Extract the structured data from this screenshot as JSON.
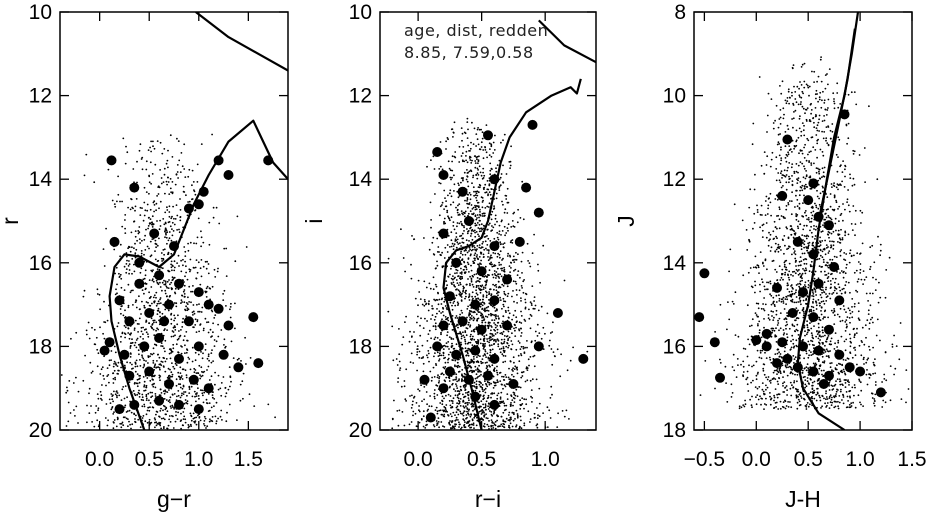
{
  "colors": {
    "ink": "#000000",
    "background": "#ffffff"
  },
  "chart_data": [
    {
      "type": "scatter",
      "title": "",
      "xlabel": "g−r",
      "ylabel": "r",
      "xlim": [
        -0.4,
        1.9
      ],
      "ylim": [
        20,
        10
      ],
      "xticks": [
        0.0,
        0.5,
        1.0,
        1.5
      ],
      "xtick_labels": [
        "0.0",
        "0.5",
        "1.0",
        "1.5"
      ],
      "yticks": [
        10,
        12,
        14,
        16,
        18,
        20
      ],
      "ytick_labels": [
        "10",
        "12",
        "14",
        "16",
        "18",
        "20"
      ],
      "grid": false,
      "annotations": [],
      "field_star_cloud": {
        "x_center": 0.6,
        "x_spread": 0.32,
        "y_top": 12.8,
        "y_bottom": 20.0,
        "count": 1600
      },
      "isochrone": [
        [
          0.45,
          20.0
        ],
        [
          0.3,
          19.0
        ],
        [
          0.2,
          18.2
        ],
        [
          0.12,
          17.4
        ],
        [
          0.1,
          16.8
        ],
        [
          0.15,
          16.1
        ],
        [
          0.25,
          15.8
        ],
        [
          0.4,
          15.85
        ],
        [
          0.6,
          16.1
        ],
        [
          0.75,
          15.8
        ],
        [
          0.85,
          15.2
        ],
        [
          0.95,
          14.6
        ],
        [
          1.1,
          13.9
        ],
        [
          1.3,
          13.1
        ],
        [
          1.55,
          12.6
        ],
        [
          1.65,
          13.1
        ],
        [
          1.75,
          13.6
        ],
        [
          1.9,
          14.0
        ]
      ],
      "isochrone_upper": [
        [
          0.97,
          10.0
        ],
        [
          1.3,
          10.6
        ],
        [
          1.6,
          11.0
        ],
        [
          1.9,
          11.4
        ]
      ],
      "member_points": [
        [
          0.12,
          13.55
        ],
        [
          0.35,
          14.2
        ],
        [
          0.9,
          14.7
        ],
        [
          1.0,
          14.6
        ],
        [
          1.05,
          14.3
        ],
        [
          1.2,
          13.55
        ],
        [
          1.3,
          13.9
        ],
        [
          1.7,
          13.55
        ],
        [
          0.15,
          15.5
        ],
        [
          0.55,
          15.3
        ],
        [
          0.75,
          15.6
        ],
        [
          0.4,
          16.0
        ],
        [
          0.6,
          16.3
        ],
        [
          0.8,
          16.5
        ],
        [
          1.0,
          16.7
        ],
        [
          1.1,
          17.0
        ],
        [
          0.2,
          16.9
        ],
        [
          0.3,
          17.4
        ],
        [
          0.5,
          17.2
        ],
        [
          0.7,
          17.0
        ],
        [
          0.9,
          17.4
        ],
        [
          1.2,
          17.1
        ],
        [
          1.3,
          17.5
        ],
        [
          0.1,
          17.9
        ],
        [
          0.25,
          18.2
        ],
        [
          0.45,
          18.0
        ],
        [
          0.6,
          17.8
        ],
        [
          0.8,
          18.3
        ],
        [
          1.0,
          18.0
        ],
        [
          1.25,
          18.2
        ],
        [
          0.3,
          18.7
        ],
        [
          0.5,
          18.6
        ],
        [
          0.7,
          18.9
        ],
        [
          0.95,
          18.8
        ],
        [
          1.1,
          19.0
        ],
        [
          0.2,
          19.5
        ],
        [
          0.35,
          19.4
        ],
        [
          0.6,
          19.3
        ],
        [
          0.8,
          19.4
        ],
        [
          1.0,
          19.5
        ],
        [
          1.4,
          18.5
        ],
        [
          1.6,
          18.4
        ],
        [
          1.55,
          17.3
        ],
        [
          0.05,
          18.1
        ],
        [
          0.4,
          16.5
        ],
        [
          0.65,
          17.4
        ]
      ]
    },
    {
      "type": "scatter",
      "title": "",
      "xlabel": "r−i",
      "ylabel": "i",
      "xlim": [
        -0.3,
        1.4
      ],
      "ylim": [
        20,
        10
      ],
      "xticks": [
        0.0,
        0.5,
        1.0
      ],
      "xtick_labels": [
        "0.0",
        "0.5",
        "1.0"
      ],
      "yticks": [
        10,
        12,
        14,
        16,
        18,
        20
      ],
      "ytick_labels": [
        "10",
        "12",
        "14",
        "16",
        "18",
        "20"
      ],
      "grid": false,
      "annotations": [
        "age, dist, redden",
        "8.85, 7.59,0.58"
      ],
      "field_star_cloud": {
        "x_center": 0.45,
        "x_spread": 0.22,
        "y_top": 12.5,
        "y_bottom": 20.0,
        "count": 2600
      },
      "isochrone": [
        [
          0.5,
          20.0
        ],
        [
          0.42,
          19.0
        ],
        [
          0.35,
          18.2
        ],
        [
          0.25,
          17.2
        ],
        [
          0.2,
          16.6
        ],
        [
          0.22,
          16.0
        ],
        [
          0.3,
          15.7
        ],
        [
          0.4,
          15.6
        ],
        [
          0.5,
          15.4
        ],
        [
          0.55,
          15.0
        ],
        [
          0.6,
          14.3
        ],
        [
          0.65,
          13.6
        ],
        [
          0.72,
          13.0
        ],
        [
          0.85,
          12.4
        ],
        [
          1.05,
          12.0
        ],
        [
          1.2,
          11.8
        ],
        [
          1.25,
          11.95
        ],
        [
          1.28,
          11.6
        ]
      ],
      "isochrone_upper": [
        [
          0.95,
          10.2
        ],
        [
          1.15,
          10.8
        ],
        [
          1.4,
          11.2
        ]
      ],
      "member_points": [
        [
          0.15,
          13.35
        ],
        [
          0.55,
          12.95
        ],
        [
          0.9,
          12.7
        ],
        [
          0.2,
          13.9
        ],
        [
          0.35,
          14.3
        ],
        [
          0.6,
          14.0
        ],
        [
          0.85,
          14.2
        ],
        [
          0.95,
          14.8
        ],
        [
          0.2,
          15.3
        ],
        [
          0.4,
          15.0
        ],
        [
          0.6,
          15.6
        ],
        [
          0.8,
          15.5
        ],
        [
          0.3,
          16.0
        ],
        [
          0.5,
          16.2
        ],
        [
          0.7,
          16.4
        ],
        [
          0.25,
          16.8
        ],
        [
          0.45,
          17.0
        ],
        [
          0.6,
          16.9
        ],
        [
          0.2,
          17.5
        ],
        [
          0.35,
          17.4
        ],
        [
          0.5,
          17.6
        ],
        [
          0.7,
          17.5
        ],
        [
          0.15,
          18.0
        ],
        [
          0.3,
          18.2
        ],
        [
          0.45,
          18.1
        ],
        [
          0.6,
          18.3
        ],
        [
          0.25,
          18.6
        ],
        [
          0.4,
          18.8
        ],
        [
          0.55,
          18.7
        ],
        [
          0.2,
          19.0
        ],
        [
          0.45,
          19.2
        ],
        [
          0.6,
          19.4
        ],
        [
          0.1,
          19.7
        ],
        [
          0.95,
          18.0
        ],
        [
          1.3,
          18.3
        ],
        [
          1.1,
          17.2
        ],
        [
          0.05,
          18.8
        ],
        [
          0.75,
          18.9
        ]
      ]
    },
    {
      "type": "scatter",
      "title": "",
      "xlabel": "J-H",
      "ylabel": "J",
      "xlim": [
        -0.6,
        1.5
      ],
      "ylim": [
        18,
        8
      ],
      "xticks": [
        -0.5,
        0.0,
        0.5,
        1.0,
        1.5
      ],
      "xtick_labels": [
        "−0.5",
        "0.0",
        "0.5",
        "1.0",
        "1.5"
      ],
      "yticks": [
        8,
        10,
        12,
        14,
        16,
        18
      ],
      "ytick_labels": [
        "8",
        "10",
        "12",
        "14",
        "16",
        "18"
      ],
      "grid": false,
      "annotations": [],
      "field_star_cloud": {
        "x_center": 0.5,
        "x_spread": 0.28,
        "y_top": 9.0,
        "y_bottom": 17.5,
        "count": 2200
      },
      "isochrone": [
        [
          0.85,
          18.0
        ],
        [
          0.6,
          17.6
        ],
        [
          0.45,
          17.0
        ],
        [
          0.4,
          16.4
        ],
        [
          0.42,
          15.8
        ],
        [
          0.5,
          15.0
        ],
        [
          0.55,
          14.2
        ],
        [
          0.6,
          13.2
        ],
        [
          0.68,
          12.0
        ],
        [
          0.75,
          11.0
        ],
        [
          0.85,
          10.0
        ],
        [
          0.92,
          9.0
        ],
        [
          0.98,
          8.0
        ]
      ],
      "isochrone_upper": [
        [
          0.6,
          13.0
        ],
        [
          0.7,
          11.8
        ],
        [
          0.8,
          10.6
        ],
        [
          0.88,
          9.6
        ],
        [
          0.95,
          8.4
        ]
      ],
      "member_points": [
        [
          0.3,
          11.05
        ],
        [
          0.85,
          10.45
        ],
        [
          0.55,
          12.1
        ],
        [
          0.5,
          12.5
        ],
        [
          0.6,
          12.9
        ],
        [
          0.25,
          12.4
        ],
        [
          0.7,
          13.1
        ],
        [
          0.4,
          13.5
        ],
        [
          0.55,
          13.8
        ],
        [
          0.75,
          14.1
        ],
        [
          0.2,
          14.6
        ],
        [
          0.45,
          14.7
        ],
        [
          0.6,
          14.5
        ],
        [
          0.8,
          14.9
        ],
        [
          0.35,
          15.2
        ],
        [
          0.55,
          15.3
        ],
        [
          0.7,
          15.6
        ],
        [
          0.1,
          15.7
        ],
        [
          0.25,
          15.9
        ],
        [
          0.45,
          16.0
        ],
        [
          0.6,
          16.1
        ],
        [
          0.8,
          16.2
        ],
        [
          0.2,
          16.4
        ],
        [
          0.4,
          16.5
        ],
        [
          0.55,
          16.6
        ],
        [
          0.7,
          16.7
        ],
        [
          0.3,
          16.3
        ],
        [
          0.9,
          16.5
        ],
        [
          1.0,
          16.6
        ],
        [
          1.2,
          17.1
        ],
        [
          -0.5,
          14.25
        ],
        [
          -0.55,
          15.3
        ],
        [
          -0.4,
          15.9
        ],
        [
          -0.35,
          16.75
        ],
        [
          0.0,
          15.85
        ],
        [
          0.1,
          16.0
        ],
        [
          0.65,
          16.9
        ]
      ]
    }
  ]
}
